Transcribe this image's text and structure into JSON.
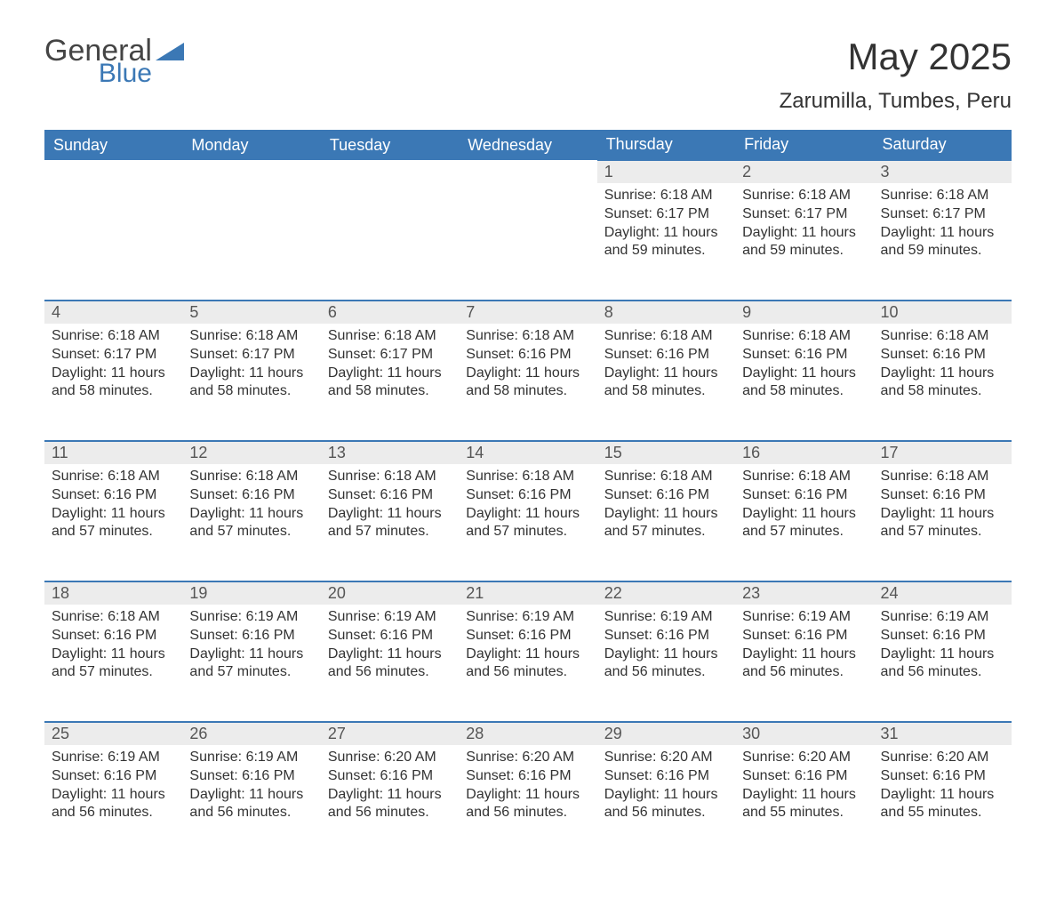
{
  "logo": {
    "word1": "General",
    "word2": "Blue"
  },
  "title": "May 2025",
  "location": "Zarumilla, Tumbes, Peru",
  "colors": {
    "header_bg": "#3b78b5",
    "header_text": "#ffffff",
    "daynum_bg": "#ececec",
    "daynum_border": "#3b78b5",
    "text": "#333333",
    "page_bg": "#ffffff"
  },
  "weekdays": [
    "Sunday",
    "Monday",
    "Tuesday",
    "Wednesday",
    "Thursday",
    "Friday",
    "Saturday"
  ],
  "weeks": [
    [
      null,
      null,
      null,
      null,
      {
        "n": "1",
        "sunrise": "6:18 AM",
        "sunset": "6:17 PM",
        "daylight": "11 hours and 59 minutes."
      },
      {
        "n": "2",
        "sunrise": "6:18 AM",
        "sunset": "6:17 PM",
        "daylight": "11 hours and 59 minutes."
      },
      {
        "n": "3",
        "sunrise": "6:18 AM",
        "sunset": "6:17 PM",
        "daylight": "11 hours and 59 minutes."
      }
    ],
    [
      {
        "n": "4",
        "sunrise": "6:18 AM",
        "sunset": "6:17 PM",
        "daylight": "11 hours and 58 minutes."
      },
      {
        "n": "5",
        "sunrise": "6:18 AM",
        "sunset": "6:17 PM",
        "daylight": "11 hours and 58 minutes."
      },
      {
        "n": "6",
        "sunrise": "6:18 AM",
        "sunset": "6:17 PM",
        "daylight": "11 hours and 58 minutes."
      },
      {
        "n": "7",
        "sunrise": "6:18 AM",
        "sunset": "6:16 PM",
        "daylight": "11 hours and 58 minutes."
      },
      {
        "n": "8",
        "sunrise": "6:18 AM",
        "sunset": "6:16 PM",
        "daylight": "11 hours and 58 minutes."
      },
      {
        "n": "9",
        "sunrise": "6:18 AM",
        "sunset": "6:16 PM",
        "daylight": "11 hours and 58 minutes."
      },
      {
        "n": "10",
        "sunrise": "6:18 AM",
        "sunset": "6:16 PM",
        "daylight": "11 hours and 58 minutes."
      }
    ],
    [
      {
        "n": "11",
        "sunrise": "6:18 AM",
        "sunset": "6:16 PM",
        "daylight": "11 hours and 57 minutes."
      },
      {
        "n": "12",
        "sunrise": "6:18 AM",
        "sunset": "6:16 PM",
        "daylight": "11 hours and 57 minutes."
      },
      {
        "n": "13",
        "sunrise": "6:18 AM",
        "sunset": "6:16 PM",
        "daylight": "11 hours and 57 minutes."
      },
      {
        "n": "14",
        "sunrise": "6:18 AM",
        "sunset": "6:16 PM",
        "daylight": "11 hours and 57 minutes."
      },
      {
        "n": "15",
        "sunrise": "6:18 AM",
        "sunset": "6:16 PM",
        "daylight": "11 hours and 57 minutes."
      },
      {
        "n": "16",
        "sunrise": "6:18 AM",
        "sunset": "6:16 PM",
        "daylight": "11 hours and 57 minutes."
      },
      {
        "n": "17",
        "sunrise": "6:18 AM",
        "sunset": "6:16 PM",
        "daylight": "11 hours and 57 minutes."
      }
    ],
    [
      {
        "n": "18",
        "sunrise": "6:18 AM",
        "sunset": "6:16 PM",
        "daylight": "11 hours and 57 minutes."
      },
      {
        "n": "19",
        "sunrise": "6:19 AM",
        "sunset": "6:16 PM",
        "daylight": "11 hours and 57 minutes."
      },
      {
        "n": "20",
        "sunrise": "6:19 AM",
        "sunset": "6:16 PM",
        "daylight": "11 hours and 56 minutes."
      },
      {
        "n": "21",
        "sunrise": "6:19 AM",
        "sunset": "6:16 PM",
        "daylight": "11 hours and 56 minutes."
      },
      {
        "n": "22",
        "sunrise": "6:19 AM",
        "sunset": "6:16 PM",
        "daylight": "11 hours and 56 minutes."
      },
      {
        "n": "23",
        "sunrise": "6:19 AM",
        "sunset": "6:16 PM",
        "daylight": "11 hours and 56 minutes."
      },
      {
        "n": "24",
        "sunrise": "6:19 AM",
        "sunset": "6:16 PM",
        "daylight": "11 hours and 56 minutes."
      }
    ],
    [
      {
        "n": "25",
        "sunrise": "6:19 AM",
        "sunset": "6:16 PM",
        "daylight": "11 hours and 56 minutes."
      },
      {
        "n": "26",
        "sunrise": "6:19 AM",
        "sunset": "6:16 PM",
        "daylight": "11 hours and 56 minutes."
      },
      {
        "n": "27",
        "sunrise": "6:20 AM",
        "sunset": "6:16 PM",
        "daylight": "11 hours and 56 minutes."
      },
      {
        "n": "28",
        "sunrise": "6:20 AM",
        "sunset": "6:16 PM",
        "daylight": "11 hours and 56 minutes."
      },
      {
        "n": "29",
        "sunrise": "6:20 AM",
        "sunset": "6:16 PM",
        "daylight": "11 hours and 56 minutes."
      },
      {
        "n": "30",
        "sunrise": "6:20 AM",
        "sunset": "6:16 PM",
        "daylight": "11 hours and 55 minutes."
      },
      {
        "n": "31",
        "sunrise": "6:20 AM",
        "sunset": "6:16 PM",
        "daylight": "11 hours and 55 minutes."
      }
    ]
  ],
  "labels": {
    "sunrise": "Sunrise:",
    "sunset": "Sunset:",
    "daylight": "Daylight:"
  }
}
